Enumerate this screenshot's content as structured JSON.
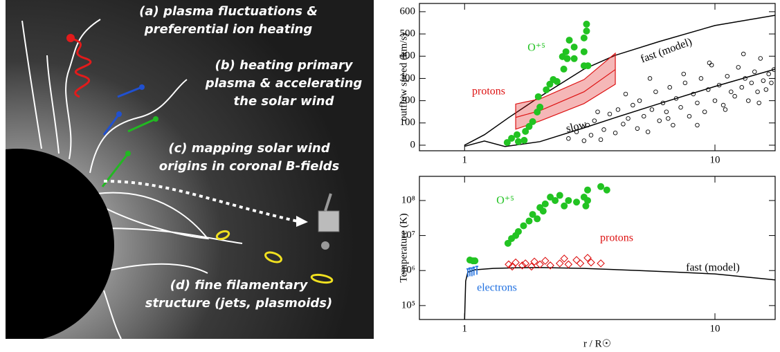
{
  "illustration": {
    "labels": [
      {
        "lines": [
          "(a) plasma fluctuations &",
          "preferential ion heating"
        ]
      },
      {
        "lines": [
          "(b) heating primary",
          "plasma & accelerating",
          "the solar wind"
        ]
      },
      {
        "lines": [
          "(c) mapping solar wind",
          "origins in coronal B-fields"
        ]
      },
      {
        "lines": [
          "(d) fine filamentary",
          "structure (jets, plasmoids)"
        ]
      }
    ]
  },
  "chart_data": [
    {
      "type": "scatter",
      "ylabel": "outflow speed (km/s)",
      "xscale": "log",
      "xlim": [
        0.66,
        17.4
      ],
      "xticks": [
        1,
        10
      ],
      "ylim": [
        -25,
        637
      ],
      "yticks": [
        0,
        100,
        200,
        300,
        400,
        500,
        600
      ],
      "series": [
        {
          "name": "fast (model)",
          "type": "line",
          "color": "#000000",
          "x": [
            1.0,
            1.2,
            1.5,
            2,
            3,
            4,
            6,
            10,
            17.4
          ],
          "values": [
            0,
            47,
            124,
            218,
            342,
            404,
            466,
            538,
            584
          ]
        },
        {
          "name": "slow",
          "type": "line",
          "color": "#000000",
          "x": [
            1.0,
            1.2,
            1.45,
            2,
            3,
            4,
            6,
            10,
            17.4
          ],
          "values": [
            -5,
            19,
            -6,
            16,
            78,
            124,
            187,
            264,
            342
          ]
        },
        {
          "name": "protons",
          "type": "band",
          "color": "#dd1111",
          "x": [
            1.6,
            2,
            3,
            4
          ],
          "values": [
            125,
            155,
            240,
            340
          ],
          "low": [
            72,
            109,
            187,
            274
          ],
          "high": [
            185,
            208,
            295,
            413
          ]
        },
        {
          "name": "O⁺⁵",
          "type": "scatter",
          "marker": "filled",
          "color": "#22c322",
          "x": [
            1.48,
            1.54,
            1.62,
            1.64,
            1.73,
            1.75,
            1.81,
            1.87,
            1.95,
            2.0,
            1.97,
            2.12,
            2.19,
            2.26,
            2.34,
            2.49,
            2.46,
            2.54,
            2.57,
            2.74,
            2.74,
            2.62,
            3.0,
            3.0,
            3.0,
            3.07,
            3.07,
            3.11
          ],
          "values": [
            12,
            31,
            47,
            16,
            22,
            62,
            84,
            106,
            149,
            171,
            218,
            249,
            274,
            295,
            286,
            342,
            398,
            420,
            389,
            389,
            441,
            472,
            357,
            420,
            482,
            513,
            544,
            357
          ]
        },
        {
          "type": "scatter",
          "marker": "open",
          "color": "#000000",
          "x": [
            2.6,
            2.8,
            3.0,
            3.1,
            3.2,
            3.3,
            3.5,
            3.6,
            3.8,
            4.0,
            4.1,
            4.3,
            4.5,
            4.7,
            4.9,
            5.0,
            5.2,
            5.4,
            5.6,
            5.8,
            6.0,
            6.2,
            6.4,
            6.6,
            6.8,
            7.0,
            7.3,
            7.6,
            7.9,
            8.2,
            8.5,
            8.8,
            9.1,
            9.4,
            9.7,
            10.0,
            10.4,
            10.8,
            11.2,
            11.6,
            12.0,
            12.4,
            12.8,
            13.2,
            13.6,
            14.0,
            14.4,
            14.8,
            15.2,
            15.6,
            16.0,
            16.4,
            16.8,
            17.2,
            3.4,
            4.4,
            5.5,
            6.5,
            7.5,
            8.5,
            9.5,
            11,
            13,
            15
          ],
          "values": [
            30,
            60,
            20,
            90,
            45,
            110,
            25,
            70,
            140,
            55,
            160,
            95,
            120,
            180,
            75,
            200,
            130,
            60,
            160,
            240,
            110,
            190,
            150,
            260,
            90,
            210,
            170,
            280,
            130,
            230,
            190,
            300,
            150,
            250,
            360,
            200,
            270,
            180,
            310,
            240,
            220,
            350,
            260,
            300,
            200,
            280,
            330,
            240,
            390,
            290,
            250,
            320,
            280,
            340,
            150,
            230,
            300,
            120,
            320,
            90,
            370,
            160,
            410,
            190
          ]
        }
      ]
    },
    {
      "type": "scatter",
      "ylabel": "Temperature (K)",
      "xlabel": "r / R☉",
      "xscale": "log",
      "yscale": "log",
      "xlim": [
        0.66,
        17.4
      ],
      "xticks": [
        1,
        10
      ],
      "ylim": [
        40000,
        490000000
      ],
      "yticks": [
        {
          "value": 100000,
          "label": "10⁵"
        },
        {
          "value": 1000000,
          "label": "10⁶"
        },
        {
          "value": 10000000,
          "label": "10⁷"
        },
        {
          "value": 100000000,
          "label": "10⁸"
        }
      ],
      "series": [
        {
          "name": "fast (model)",
          "type": "line",
          "color": "#000000",
          "x": [
            1.0,
            1.01,
            1.03,
            1.1,
            1.3,
            1.6,
            2.0,
            3,
            5,
            7,
            10,
            17.4
          ],
          "values": [
            40000,
            500000,
            900000,
            1050000,
            1150000,
            1200000,
            1220000,
            1150000,
            1000000,
            900000,
            800000,
            540000
          ]
        },
        {
          "name": "O⁺⁵",
          "type": "scatter",
          "marker": "filled",
          "color": "#22c322",
          "x": [
            1.05,
            1.08,
            1.1,
            1.49,
            1.54,
            1.6,
            1.64,
            1.72,
            1.81,
            1.87,
            1.95,
            2.0,
            2.06,
            2.1,
            2.2,
            2.3,
            2.4,
            2.5,
            2.6,
            2.8,
            3.0,
            3.1,
            3.1,
            3.05,
            3.5,
            3.7
          ],
          "values": [
            2000000,
            1900000,
            1900000,
            6000000,
            8200000,
            10000000,
            13000000,
            19000000,
            26000000,
            40000000,
            30000000,
            63000000,
            50000000,
            80000000,
            125000000,
            100000000,
            140000000,
            70000000,
            100000000,
            90000000,
            125000000,
            200000000,
            100000000,
            70000000,
            250000000,
            200000000
          ]
        },
        {
          "name": "protons",
          "type": "scatter",
          "marker": "diamond",
          "color": "#dd1111",
          "x": [
            1.5,
            1.55,
            1.6,
            1.7,
            1.75,
            1.85,
            1.9,
            2.0,
            2.1,
            2.2,
            2.4,
            2.5,
            2.6,
            2.8,
            2.9,
            3.1,
            3.2,
            3.5
          ],
          "values": [
            1500000,
            1300000,
            1700000,
            1400000,
            1600000,
            1300000,
            1800000,
            1500000,
            1900000,
            1400000,
            1600000,
            2200000,
            1500000,
            2000000,
            1600000,
            2300000,
            1700000,
            1600000
          ]
        },
        {
          "name": "electrons",
          "type": "scatter",
          "marker": "bar",
          "color": "#1e6fe0",
          "x": [
            1.03,
            1.05,
            1.07,
            1.09,
            1.12
          ],
          "values": [
            850000,
            900000,
            900000,
            950000,
            1000000
          ]
        }
      ]
    }
  ]
}
